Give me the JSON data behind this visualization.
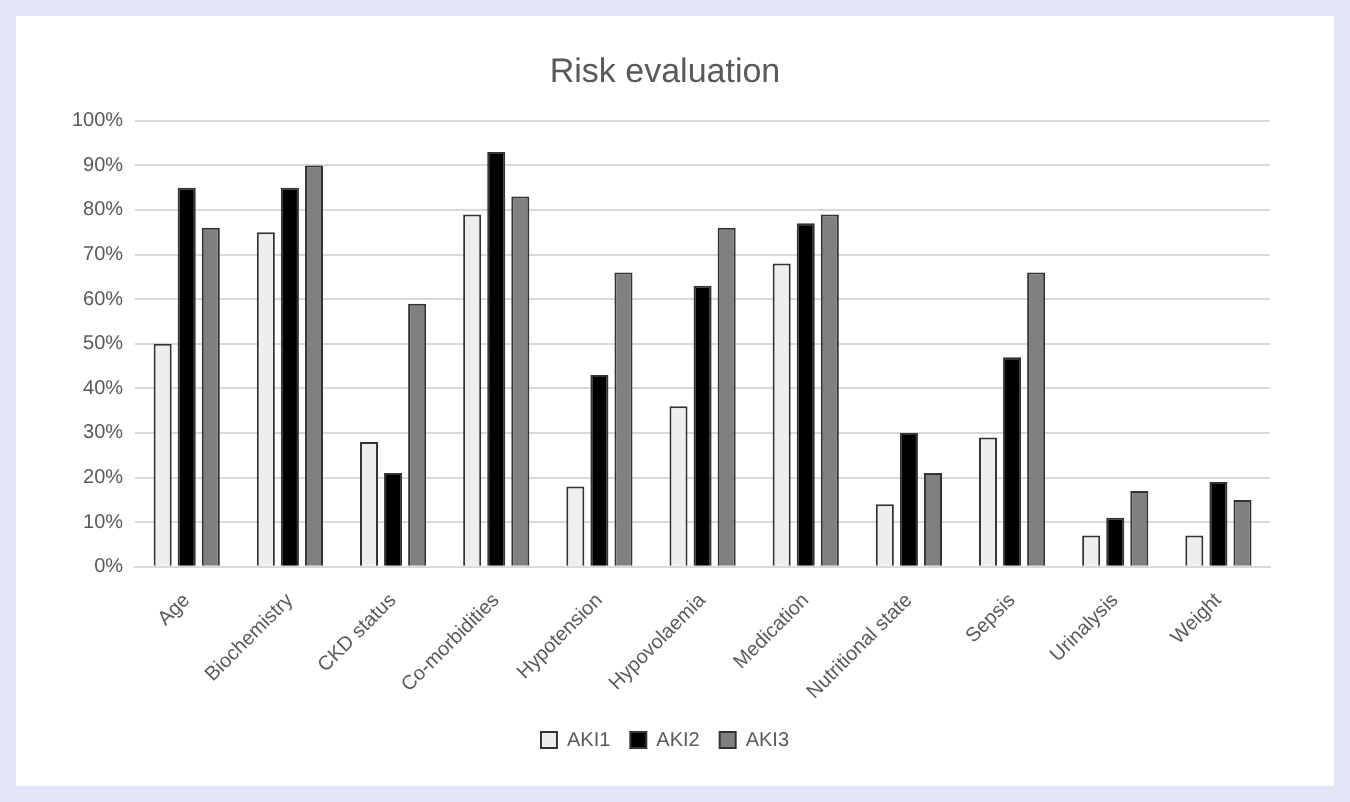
{
  "chart_data": {
    "type": "bar",
    "title": "Risk evaluation",
    "categories": [
      "Age",
      "Biochemistry",
      "CKD status",
      "Co-morbidities",
      "Hypotension",
      "Hypovolaemia",
      "Medication",
      "Nutritional state",
      "Sepsis",
      "Urinalysis",
      "Weight"
    ],
    "series": [
      {
        "name": "AKI1",
        "color": "#eeeeee",
        "values": [
          50,
          75,
          28,
          79,
          18,
          36,
          68,
          14,
          29,
          7,
          7
        ]
      },
      {
        "name": "AKI2",
        "color": "#000000",
        "values": [
          85,
          85,
          21,
          93,
          43,
          63,
          77,
          30,
          47,
          11,
          19
        ]
      },
      {
        "name": "AKI3",
        "color": "#808080",
        "values": [
          76,
          90,
          59,
          83,
          66,
          76,
          79,
          21,
          66,
          17,
          15
        ]
      }
    ],
    "ylim": [
      0,
      100
    ],
    "yticks": [
      {
        "value": 0,
        "label": "0%"
      },
      {
        "value": 10,
        "label": "10%"
      },
      {
        "value": 20,
        "label": "20%"
      },
      {
        "value": 30,
        "label": "30%"
      },
      {
        "value": 40,
        "label": "40%"
      },
      {
        "value": 50,
        "label": "50%"
      },
      {
        "value": 60,
        "label": "60%"
      },
      {
        "value": 70,
        "label": "70%"
      },
      {
        "value": 80,
        "label": "80%"
      },
      {
        "value": 90,
        "label": "90%"
      },
      {
        "value": 100,
        "label": "100%"
      }
    ],
    "grid": "y",
    "legend": "bottom"
  }
}
